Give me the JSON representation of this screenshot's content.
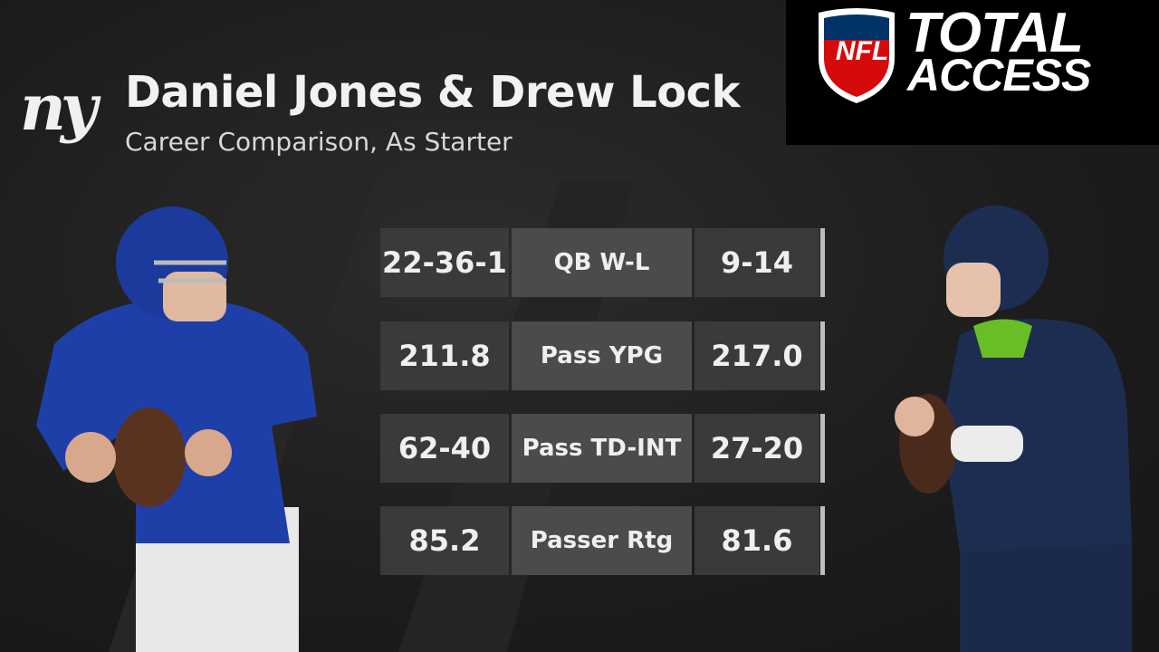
{
  "header": {
    "logo": "ny",
    "title": "Daniel Jones & Drew Lock",
    "subtitle": "Career Comparison, As Starter"
  },
  "brand": {
    "shield": "NFL",
    "line1": "TOTAL",
    "line2": "ACCESS"
  },
  "table": {
    "rows": [
      [
        "22-36-1",
        "QB W-L",
        "9-14"
      ],
      [
        "211.8",
        "Pass YPG",
        "217.0"
      ],
      [
        "62-40",
        "Pass TD-INT",
        "27-20"
      ],
      [
        "85.2",
        "Passer Rtg",
        "81.6"
      ]
    ]
  }
}
